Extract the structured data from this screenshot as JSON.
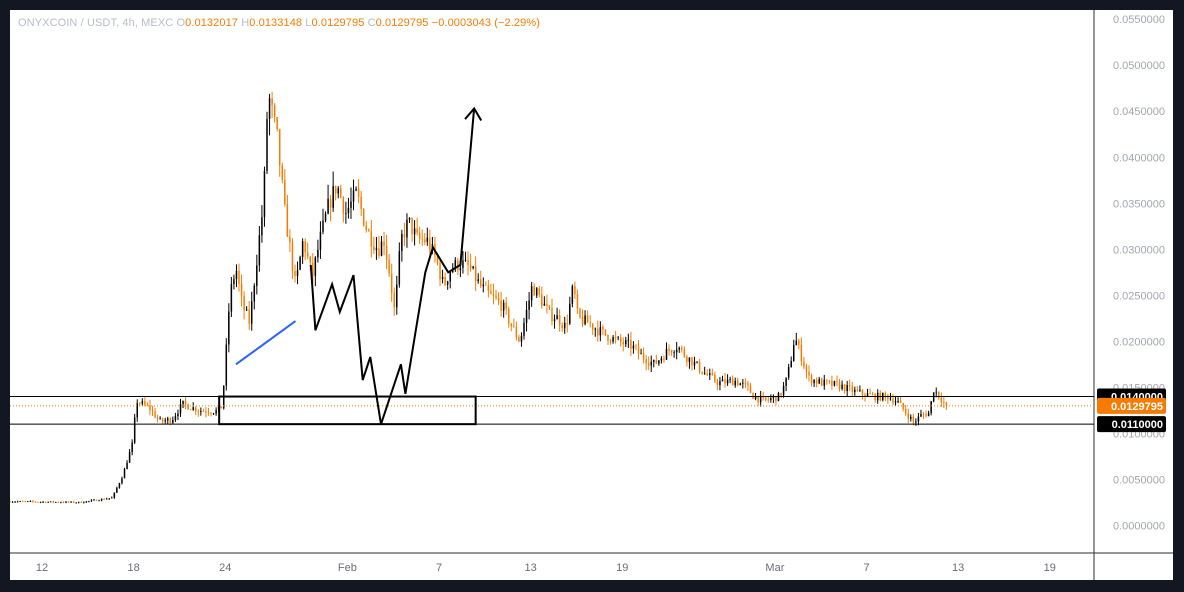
{
  "legend": {
    "symbol": "ONYXCOIN / USDT, 4h, MEXC",
    "o_key": "O",
    "o": "0.0132017",
    "h_key": "H",
    "h": "0.0133148",
    "l_key": "L",
    "l": "0.0129795",
    "c_key": "C",
    "c": "0.0129795",
    "change": "−0.0003043 (−2.29%)"
  },
  "colors": {
    "up": "#000000",
    "down": "#f57c00",
    "support_tag": "#000000",
    "price_tag": "#f57c00",
    "drawing_blue": "#2962ff",
    "drawing_black": "#000000"
  },
  "chart_data": {
    "type": "candlestick",
    "symbol": "ONYXCOIN / USDT",
    "interval": "4h",
    "exchange": "MEXC",
    "y_ticks": [
      "0.0550000",
      "0.0500000",
      "0.0450000",
      "0.0400000",
      "0.0350000",
      "0.0300000",
      "0.0250000",
      "0.0200000",
      "0.0150000",
      "0.0100000",
      "0.0050000",
      "0.0000000"
    ],
    "y_tick_values": [
      0.055,
      0.05,
      0.045,
      0.04,
      0.035,
      0.03,
      0.025,
      0.02,
      0.015,
      0.01,
      0.005,
      0
    ],
    "x_ticks": [
      "12",
      "18",
      "24",
      "Feb",
      "7",
      "13",
      "19",
      "Mar",
      "7",
      "13",
      "19"
    ],
    "x_tick_days": [
      12,
      18,
      24,
      32,
      38,
      44,
      50,
      60,
      66,
      72,
      78
    ],
    "ylim": [
      -0.003,
      0.056
    ],
    "xlim_days": [
      9.9,
      80.9
    ],
    "price_path": [
      [
        9.9,
        0.0026
      ],
      [
        14.5,
        0.0025
      ],
      [
        16.6,
        0.003
      ],
      [
        17.3,
        0.0055
      ],
      [
        17.9,
        0.0088
      ],
      [
        18.2,
        0.0135
      ],
      [
        19,
        0.0128
      ],
      [
        19.7,
        0.0113
      ],
      [
        20.5,
        0.0115
      ],
      [
        21.2,
        0.0132
      ],
      [
        22.3,
        0.0125
      ],
      [
        23.5,
        0.0124
      ],
      [
        23.8,
        0.013
      ],
      [
        24,
        0.0175
      ],
      [
        24.3,
        0.025
      ],
      [
        24.7,
        0.028
      ],
      [
        25.1,
        0.024
      ],
      [
        25.6,
        0.022
      ],
      [
        26,
        0.028
      ],
      [
        26.5,
        0.035
      ],
      [
        26.8,
        0.047
      ],
      [
        27.4,
        0.042
      ],
      [
        27.9,
        0.034
      ],
      [
        28.6,
        0.026
      ],
      [
        29.1,
        0.031
      ],
      [
        29.7,
        0.027
      ],
      [
        30.2,
        0.031
      ],
      [
        30.8,
        0.035
      ],
      [
        31.3,
        0.037
      ],
      [
        31.9,
        0.034
      ],
      [
        32.6,
        0.036
      ],
      [
        33.3,
        0.032
      ],
      [
        34,
        0.03
      ],
      [
        34.4,
        0.031
      ],
      [
        34.8,
        0.027
      ],
      [
        35.1,
        0.023
      ],
      [
        35.5,
        0.031
      ],
      [
        36,
        0.033
      ],
      [
        36.6,
        0.031
      ],
      [
        37.2,
        0.031
      ],
      [
        37.8,
        0.029
      ],
      [
        38.3,
        0.026
      ],
      [
        38.8,
        0.028
      ],
      [
        39.4,
        0.0285
      ],
      [
        40,
        0.028
      ],
      [
        40.7,
        0.026
      ],
      [
        41.3,
        0.025
      ],
      [
        42.1,
        0.024
      ],
      [
        42.8,
        0.0215
      ],
      [
        43.3,
        0.02
      ],
      [
        43.7,
        0.023
      ],
      [
        44.1,
        0.026
      ],
      [
        44.7,
        0.0245
      ],
      [
        45.2,
        0.023
      ],
      [
        45.8,
        0.0225
      ],
      [
        46.3,
        0.0215
      ],
      [
        46.8,
        0.026
      ],
      [
        47.1,
        0.0225
      ],
      [
        47.8,
        0.022
      ],
      [
        48.6,
        0.021
      ],
      [
        49.7,
        0.02
      ],
      [
        50.6,
        0.0195
      ],
      [
        51.2,
        0.0185
      ],
      [
        52.1,
        0.0175
      ],
      [
        53,
        0.019
      ],
      [
        53.6,
        0.0195
      ],
      [
        54.1,
        0.0185
      ],
      [
        54.8,
        0.0175
      ],
      [
        55.4,
        0.0165
      ],
      [
        56.3,
        0.0155
      ],
      [
        57.4,
        0.0157
      ],
      [
        58.2,
        0.015
      ],
      [
        58.6,
        0.014
      ],
      [
        59.3,
        0.0135
      ],
      [
        59.8,
        0.0138
      ],
      [
        60.3,
        0.014
      ],
      [
        60.7,
        0.0155
      ],
      [
        61,
        0.0175
      ],
      [
        61.3,
        0.0205
      ],
      [
        61.6,
        0.019
      ],
      [
        61.9,
        0.0175
      ],
      [
        62.2,
        0.016
      ],
      [
        63,
        0.0155
      ],
      [
        64.2,
        0.0152
      ],
      [
        65.3,
        0.0145
      ],
      [
        66.5,
        0.014
      ],
      [
        67.4,
        0.014
      ],
      [
        68,
        0.0135
      ],
      [
        68.6,
        0.0122
      ],
      [
        69.1,
        0.0112
      ],
      [
        69.6,
        0.012
      ],
      [
        70.1,
        0.0122
      ],
      [
        70.4,
        0.0148
      ],
      [
        70.8,
        0.014
      ],
      [
        71.1,
        0.0132
      ],
      [
        71.3,
        0.013
      ]
    ],
    "last_price": 0.0129795,
    "levels": [
      {
        "name": "resistance",
        "value": 0.014,
        "label": "0.0140000"
      },
      {
        "name": "support",
        "value": 0.011,
        "label": "0.0110000"
      }
    ],
    "last_price_label": "0.0129795",
    "drawings": {
      "zone_box": {
        "d1": 23.6,
        "d2": 40.4,
        "p1": 0.014,
        "p2": 0.011
      },
      "blue_trendline": [
        [
          24.7,
          0.0175
        ],
        [
          28.6,
          0.0222
        ]
      ],
      "zigzag": [
        [
          29.6,
          0.0283
        ],
        [
          29.9,
          0.0212
        ],
        [
          31,
          0.0262
        ],
        [
          31.5,
          0.0232
        ],
        [
          32.4,
          0.0272
        ],
        [
          33,
          0.0158
        ],
        [
          33.5,
          0.0183
        ],
        [
          34.2,
          0.011
        ],
        [
          35.5,
          0.0175
        ],
        [
          35.8,
          0.0143
        ],
        [
          37.1,
          0.0275
        ],
        [
          37.6,
          0.0302
        ],
        [
          38.6,
          0.0275
        ],
        [
          39.4,
          0.0283
        ],
        [
          40.3,
          0.0453
        ]
      ],
      "arrow_tip": [
        40.3,
        0.0453
      ]
    }
  }
}
